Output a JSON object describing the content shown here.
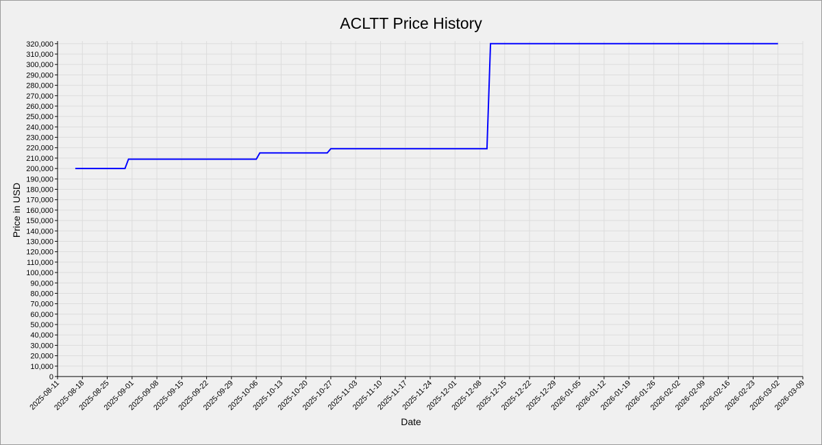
{
  "chart_data": {
    "type": "line",
    "title": "ACLTT Price History",
    "x_label": "Date",
    "y_label": "Price in USD",
    "x": [
      "2025-08-16",
      "2025-08-30",
      "2025-08-31",
      "2025-10-06",
      "2025-10-07",
      "2025-10-26",
      "2025-10-27",
      "2025-12-10",
      "2025-12-11",
      "2026-03-02"
    ],
    "series": [
      {
        "name": "ACLTT",
        "color": "#0000ff",
        "values": [
          200000,
          200000,
          209000,
          209000,
          215000,
          215000,
          219000,
          219000,
          320000,
          320000
        ]
      }
    ],
    "xlim": [
      "2025-08-11",
      "2026-03-09"
    ],
    "xticks": [
      "2025-08-11",
      "2025-08-18",
      "2025-08-25",
      "2025-09-01",
      "2025-09-08",
      "2025-09-15",
      "2025-09-22",
      "2025-09-29",
      "2025-10-06",
      "2025-10-13",
      "2025-10-20",
      "2025-10-27",
      "2025-11-03",
      "2025-11-10",
      "2025-11-17",
      "2025-11-24",
      "2025-12-01",
      "2025-12-08",
      "2025-12-15",
      "2025-12-22",
      "2025-12-29",
      "2026-01-05",
      "2026-01-12",
      "2026-01-19",
      "2026-01-26",
      "2026-02-02",
      "2026-02-09",
      "2026-02-16",
      "2026-02-23",
      "2026-03-02",
      "2026-03-09"
    ],
    "ylim": [
      0,
      322500
    ],
    "yticks": [
      0,
      {
        "value": 10000,
        "label": "10,000"
      },
      {
        "value": 20000,
        "label": "20,000"
      },
      {
        "value": 30000,
        "label": "30,000"
      },
      {
        "value": 40000,
        "label": "40,000"
      },
      {
        "value": 50000,
        "label": "50,000"
      },
      {
        "value": 60000,
        "label": "60,000"
      },
      {
        "value": 70000,
        "label": "70,000"
      },
      {
        "value": 80000,
        "label": "80,000"
      },
      {
        "value": 90000,
        "label": "90,000"
      },
      {
        "value": 100000,
        "label": "100,000"
      },
      {
        "value": 110000,
        "label": "110,000"
      },
      {
        "value": 120000,
        "label": "120,000"
      },
      {
        "value": 130000,
        "label": "130,000"
      },
      {
        "value": 140000,
        "label": "140,000"
      },
      {
        "value": 150000,
        "label": "150,000"
      },
      {
        "value": 160000,
        "label": "160,000"
      },
      {
        "value": 170000,
        "label": "170,000"
      },
      {
        "value": 180000,
        "label": "180,000"
      },
      {
        "value": 190000,
        "label": "190,000"
      },
      {
        "value": 200000,
        "label": "200,000"
      },
      {
        "value": 210000,
        "label": "210,000"
      },
      {
        "value": 220000,
        "label": "220,000"
      },
      {
        "value": 230000,
        "label": "230,000"
      },
      {
        "value": 240000,
        "label": "240,000"
      },
      {
        "value": 250000,
        "label": "250,000"
      },
      {
        "value": 260000,
        "label": "260,000"
      },
      {
        "value": 270000,
        "label": "270,000"
      },
      {
        "value": 280000,
        "label": "280,000"
      },
      {
        "value": 290000,
        "label": "290,000"
      },
      {
        "value": 300000,
        "label": "300,000"
      },
      {
        "value": 310000,
        "label": "310,000"
      },
      {
        "value": 320000,
        "label": "320,000"
      }
    ],
    "grid": true
  }
}
